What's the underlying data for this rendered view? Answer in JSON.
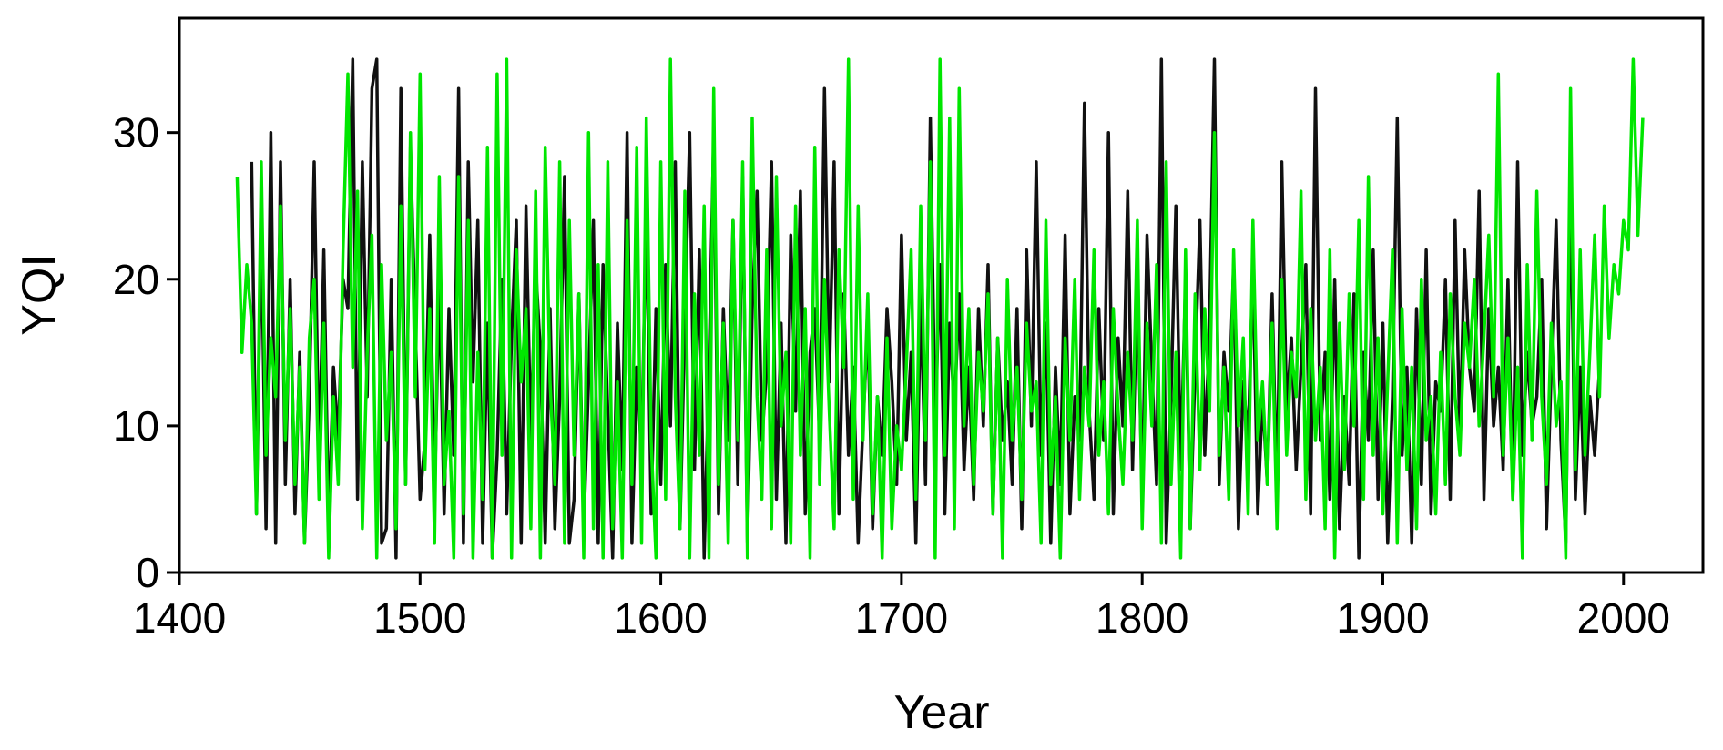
{
  "chart_data": {
    "type": "line",
    "x_label": "Year",
    "y_label": "YQI",
    "x": [
      1424,
      1426,
      1428,
      1430,
      1432,
      1434,
      1436,
      1438,
      1440,
      1442,
      1444,
      1446,
      1448,
      1450,
      1452,
      1454,
      1456,
      1458,
      1460,
      1462,
      1464,
      1466,
      1468,
      1470,
      1472,
      1474,
      1476,
      1478,
      1480,
      1482,
      1484,
      1486,
      1488,
      1490,
      1492,
      1494,
      1496,
      1498,
      1500,
      1502,
      1504,
      1506,
      1508,
      1510,
      1512,
      1514,
      1516,
      1518,
      1520,
      1522,
      1524,
      1526,
      1528,
      1530,
      1532,
      1534,
      1536,
      1538,
      1540,
      1542,
      1544,
      1546,
      1548,
      1550,
      1552,
      1554,
      1556,
      1558,
      1560,
      1562,
      1564,
      1566,
      1568,
      1570,
      1572,
      1574,
      1576,
      1578,
      1580,
      1582,
      1584,
      1586,
      1588,
      1590,
      1592,
      1594,
      1596,
      1598,
      1600,
      1602,
      1604,
      1606,
      1608,
      1610,
      1612,
      1614,
      1616,
      1618,
      1620,
      1622,
      1624,
      1626,
      1628,
      1630,
      1632,
      1634,
      1636,
      1638,
      1640,
      1642,
      1644,
      1646,
      1648,
      1650,
      1652,
      1654,
      1656,
      1658,
      1660,
      1662,
      1664,
      1666,
      1668,
      1670,
      1672,
      1674,
      1676,
      1678,
      1680,
      1682,
      1684,
      1686,
      1688,
      1690,
      1692,
      1694,
      1696,
      1698,
      1700,
      1702,
      1704,
      1706,
      1708,
      1710,
      1712,
      1714,
      1716,
      1718,
      1720,
      1722,
      1724,
      1726,
      1728,
      1730,
      1732,
      1734,
      1736,
      1738,
      1740,
      1742,
      1744,
      1746,
      1748,
      1750,
      1752,
      1754,
      1756,
      1758,
      1760,
      1762,
      1764,
      1766,
      1768,
      1770,
      1772,
      1774,
      1776,
      1778,
      1780,
      1782,
      1784,
      1786,
      1788,
      1790,
      1792,
      1794,
      1796,
      1798,
      1800,
      1802,
      1804,
      1806,
      1808,
      1810,
      1812,
      1814,
      1816,
      1818,
      1820,
      1822,
      1824,
      1826,
      1828,
      1830,
      1832,
      1834,
      1836,
      1838,
      1840,
      1842,
      1844,
      1846,
      1848,
      1850,
      1852,
      1854,
      1856,
      1858,
      1860,
      1862,
      1864,
      1866,
      1868,
      1870,
      1872,
      1874,
      1876,
      1878,
      1880,
      1882,
      1884,
      1886,
      1888,
      1890,
      1892,
      1894,
      1896,
      1898,
      1900,
      1902,
      1904,
      1906,
      1908,
      1910,
      1912,
      1914,
      1916,
      1918,
      1920,
      1922,
      1924,
      1926,
      1928,
      1930,
      1932,
      1934,
      1936,
      1938,
      1940,
      1942,
      1944,
      1946,
      1948,
      1950,
      1952,
      1954,
      1956,
      1958,
      1960,
      1962,
      1964,
      1966,
      1968,
      1970,
      1972,
      1974,
      1976,
      1978,
      1980,
      1982,
      1984,
      1986,
      1988,
      1990,
      1992,
      1994,
      1996,
      1998,
      2000,
      2002,
      2004,
      2006,
      2008
    ],
    "series": [
      {
        "color": "#111111",
        "values": [
          null,
          null,
          null,
          28,
          4,
          24,
          3,
          30,
          2,
          28,
          6,
          20,
          4,
          15,
          2,
          12,
          28,
          7,
          22,
          3,
          14,
          9,
          20,
          18,
          35,
          5,
          28,
          12,
          33,
          35,
          2,
          3,
          20,
          1,
          33,
          6,
          29,
          17,
          5,
          9,
          23,
          5,
          20,
          4,
          18,
          8,
          33,
          2,
          28,
          13,
          24,
          2,
          17,
          1,
          8,
          20,
          4,
          16,
          24,
          2,
          25,
          9,
          21,
          15,
          2,
          18,
          3,
          12,
          27,
          2,
          5,
          19,
          3,
          13,
          24,
          2,
          21,
          11,
          1,
          17,
          7,
          30,
          2,
          14,
          8,
          25,
          4,
          18,
          6,
          21,
          10,
          28,
          3,
          17,
          30,
          7,
          22,
          1,
          14,
          30,
          4,
          18,
          9,
          24,
          6,
          27,
          2,
          18,
          26,
          9,
          14,
          28,
          5,
          17,
          2,
          23,
          11,
          26,
          4,
          15,
          18,
          9,
          33,
          13,
          28,
          4,
          19,
          8,
          14,
          2,
          10,
          17,
          3,
          12,
          8,
          18,
          13,
          6,
          23,
          9,
          15,
          2,
          19,
          6,
          31,
          10,
          21,
          4,
          17,
          11,
          19,
          7,
          14,
          5,
          18,
          10,
          21,
          4,
          16,
          9,
          13,
          6,
          18,
          3,
          22,
          10,
          28,
          8,
          17,
          2,
          14,
          6,
          23,
          4,
          12,
          9,
          32,
          11,
          5,
          18,
          9,
          30,
          4,
          16,
          10,
          26,
          7,
          20,
          5,
          23,
          14,
          6,
          35,
          2,
          12,
          25,
          7,
          20,
          3,
          14,
          24,
          8,
          17,
          35,
          6,
          15,
          11,
          21,
          3,
          13,
          9,
          21,
          4,
          12,
          6,
          19,
          5,
          28,
          11,
          16,
          7,
          14,
          21,
          4,
          33,
          9,
          15,
          5,
          20,
          3,
          12,
          6,
          19,
          1,
          15,
          9,
          22,
          5,
          17,
          2,
          12,
          31,
          8,
          14,
          2,
          18,
          6,
          22,
          4,
          13,
          11,
          20,
          5,
          24,
          9,
          22,
          14,
          11,
          26,
          5,
          18,
          10,
          14,
          7,
          20,
          5,
          28,
          8,
          15,
          10,
          12,
          20,
          3,
          14,
          24,
          9,
          2,
          27,
          5,
          14,
          4,
          12,
          8,
          14,
          null,
          null,
          null,
          null,
          null,
          null,
          null,
          null,
          null
        ]
      },
      {
        "color": "#00e600",
        "values": [
          27,
          15,
          21,
          17,
          4,
          28,
          8,
          16,
          12,
          25,
          9,
          18,
          6,
          14,
          2,
          16,
          20,
          5,
          17,
          1,
          12,
          6,
          22,
          34,
          14,
          26,
          3,
          15,
          23,
          1,
          21,
          9,
          15,
          3,
          25,
          6,
          30,
          12,
          34,
          7,
          18,
          2,
          27,
          6,
          11,
          1,
          27,
          4,
          24,
          1,
          15,
          5,
          29,
          1,
          34,
          8,
          35,
          1,
          22,
          13,
          18,
          3,
          26,
          1,
          29,
          13,
          6,
          28,
          2,
          24,
          8,
          19,
          1,
          30,
          3,
          21,
          1,
          28,
          3,
          13,
          1,
          24,
          6,
          29,
          2,
          31,
          9,
          1,
          28,
          5,
          35,
          12,
          3,
          26,
          1,
          19,
          8,
          25,
          1,
          33,
          6,
          17,
          2,
          24,
          9,
          28,
          1,
          31,
          12,
          5,
          22,
          3,
          27,
          10,
          15,
          2,
          25,
          8,
          18,
          1,
          29,
          6,
          20,
          11,
          3,
          22,
          14,
          35,
          5,
          25,
          9,
          19,
          4,
          12,
          1,
          16,
          3,
          10,
          7,
          14,
          22,
          5,
          25,
          9,
          28,
          1,
          35,
          8,
          31,
          3,
          33,
          10,
          18,
          6,
          15,
          11,
          19,
          4,
          16,
          1,
          20,
          9,
          14,
          5,
          17,
          11,
          13,
          2,
          24,
          6,
          12,
          1,
          16,
          9,
          20,
          5,
          14,
          10,
          22,
          8,
          13,
          4,
          18,
          11,
          6,
          15,
          9,
          24,
          3,
          17,
          10,
          21,
          2,
          28,
          6,
          15,
          1,
          22,
          3,
          19,
          7,
          18,
          11,
          30,
          8,
          14,
          5,
          22,
          10,
          16,
          4,
          24,
          9,
          13,
          6,
          17,
          3,
          20,
          8,
          15,
          12,
          26,
          5,
          18,
          9,
          14,
          3,
          22,
          1,
          17,
          7,
          19,
          10,
          24,
          5,
          27,
          8,
          16,
          4,
          13,
          22,
          2,
          18,
          7,
          14,
          3,
          20,
          9,
          12,
          4,
          15,
          6,
          19,
          12,
          8,
          17,
          14,
          20,
          10,
          16,
          23,
          12,
          34,
          8,
          16,
          5,
          14,
          1,
          21,
          9,
          26,
          12,
          6,
          17,
          10,
          13,
          1,
          33,
          7,
          22,
          8,
          15,
          23,
          12,
          25,
          16,
          21,
          19,
          24,
          22,
          35,
          23,
          31
        ]
      }
    ],
    "xlim": [
      1400,
      2033
    ],
    "xticks": [
      1400,
      1500,
      1600,
      1700,
      1800,
      1900,
      2000
    ],
    "ylim": [
      0,
      37.8
    ],
    "yticks": [
      0,
      10,
      20,
      30
    ]
  }
}
